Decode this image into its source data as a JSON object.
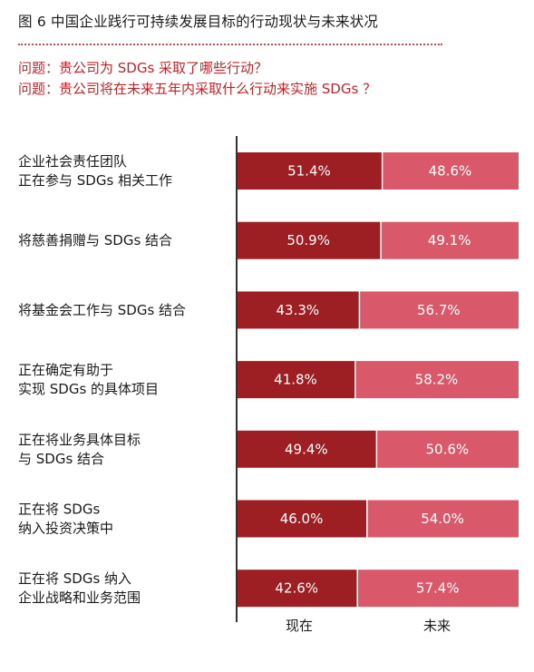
{
  "title": "图 6 中国企业践行可持续发展目标的行动现状与未来状况",
  "questions": [
    "问题：贵公司为 SDGs 采取了哪些行动？",
    "问题：贵公司将在未来五年内采取什么行动来实施 SDGs ？"
  ],
  "colors": {
    "now": "#9e1f23",
    "future": "#d9596a",
    "axis": "#333333",
    "divider": "#d34a4a"
  },
  "chart_data": {
    "type": "bar",
    "stacked": true,
    "orientation": "horizontal",
    "categories": [
      [
        "企业社会责任团队",
        "正在参与 SDGs 相关工作"
      ],
      [
        "将慈善捐赠与 SDGs 结合"
      ],
      [
        "将基金会工作与 SDGs 结合"
      ],
      [
        "正在确定有助于",
        "实现 SDGs 的具体项目"
      ],
      [
        "正在将业务具体目标",
        "与 SDGs 结合"
      ],
      [
        "正在将 SDGs",
        "纳入投资决策中"
      ],
      [
        "正在将 SDGs 纳入",
        "企业战略和业务范围"
      ]
    ],
    "series": [
      {
        "name": "现在",
        "values": [
          51.4,
          50.9,
          43.3,
          41.8,
          49.4,
          46.0,
          42.6
        ],
        "labels": [
          "51.4%",
          "50.9%",
          "43.3%",
          "41.8%",
          "49.4%",
          "46.0%",
          "42.6%"
        ]
      },
      {
        "name": "未来",
        "values": [
          48.6,
          49.1,
          56.7,
          58.2,
          50.6,
          54.0,
          57.4
        ],
        "labels": [
          "48.6%",
          "49.1%",
          "56.7%",
          "58.2%",
          "50.6%",
          "54.0%",
          "57.4%"
        ]
      }
    ],
    "xlim": [
      0,
      100
    ],
    "grid": false,
    "legend": "bottom"
  }
}
